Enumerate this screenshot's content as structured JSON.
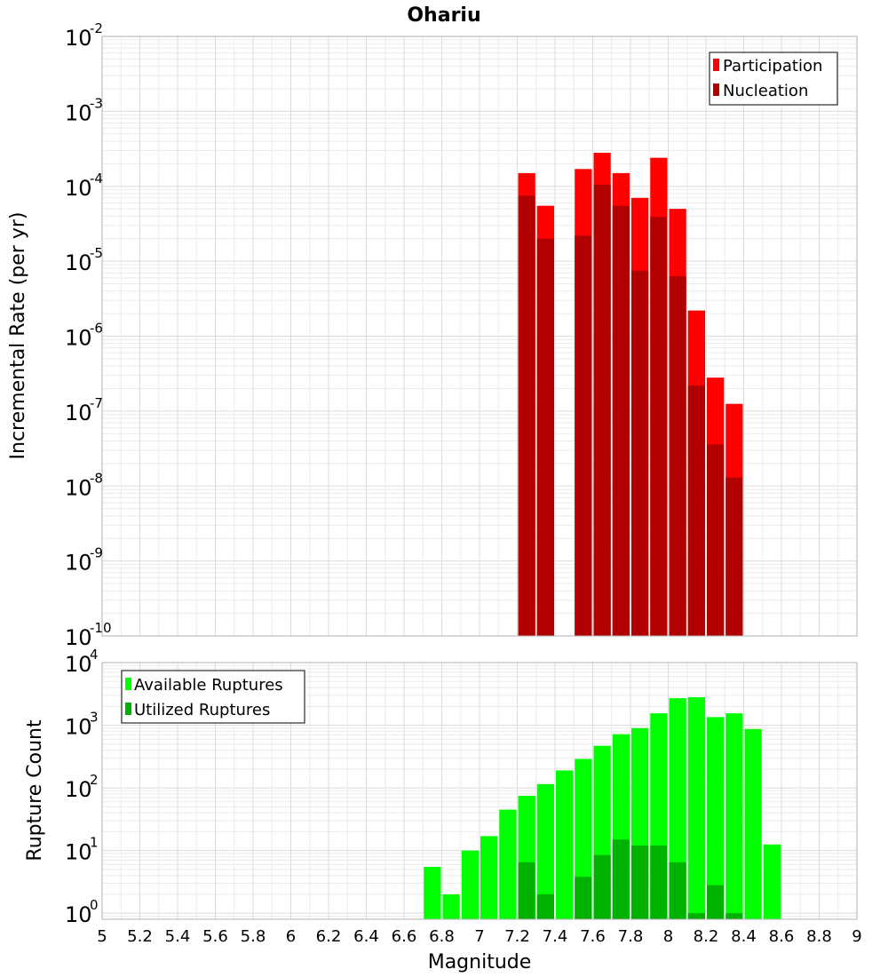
{
  "title": "Ohariu",
  "x_axis": {
    "label": "Magnitude",
    "range": [
      5,
      9
    ],
    "tick_labels": [
      "5",
      "5.2",
      "5.4",
      "5.6",
      "5.8",
      "6",
      "6.2",
      "6.4",
      "6.6",
      "6.8",
      "7",
      "7.2",
      "7.4",
      "7.6",
      "7.8",
      "8",
      "8.2",
      "8.4",
      "8.6",
      "8.8",
      "9"
    ]
  },
  "colors": {
    "participation": "#ff0000",
    "nucleation": "#b20000",
    "available": "#00ff00",
    "utilized": "#00b200",
    "grid": "#ebebeb",
    "frame": "#b0b0b0"
  },
  "chart_data": [
    {
      "type": "bar",
      "title": "Ohariu",
      "xlabel": "",
      "ylabel": "Incremental Rate (per yr)",
      "yscale": "log",
      "ylim": [
        1e-10,
        0.01
      ],
      "y_tick_exponents": [
        -10,
        -9,
        -8,
        -7,
        -6,
        -5,
        -4,
        -3,
        -2
      ],
      "grid": true,
      "legend_position": "top-right",
      "bin_width": 0.1,
      "x": [
        7.25,
        7.35,
        7.55,
        7.65,
        7.75,
        7.85,
        7.95,
        8.05,
        8.15,
        8.25,
        8.35
      ],
      "series": [
        {
          "name": "Participation",
          "color_key": "participation",
          "values": [
            0.00015,
            5.5e-05,
            0.00017,
            0.00028,
            0.00015,
            7e-05,
            0.00024,
            5e-05,
            2.2e-06,
            2.8e-07,
            1.25e-07
          ]
        },
        {
          "name": "Nucleation",
          "color_key": "nucleation",
          "values": [
            7.5e-05,
            2e-05,
            2.2e-05,
            0.000105,
            5.5e-05,
            7.5e-06,
            3.9e-05,
            6.3e-06,
            2.2e-07,
            3.6e-08,
            1.3e-08
          ]
        }
      ]
    },
    {
      "type": "bar",
      "xlabel": "Magnitude",
      "ylabel": "Rupture Count",
      "yscale": "log",
      "ylim": [
        0.8,
        10000.0
      ],
      "y_tick_exponents": [
        0,
        1,
        2,
        3,
        4
      ],
      "grid": true,
      "legend_position": "top-left",
      "bin_width": 0.1,
      "series": [
        {
          "name": "Available Ruptures",
          "color_key": "available",
          "x": [
            6.75,
            6.85,
            6.95,
            7.05,
            7.15,
            7.25,
            7.35,
            7.45,
            7.55,
            7.65,
            7.75,
            7.85,
            7.95,
            8.05,
            8.15,
            8.25,
            8.35,
            8.45,
            8.55
          ],
          "values": [
            5.5,
            2,
            10,
            17,
            45,
            75,
            115,
            190,
            290,
            470,
            720,
            900,
            1550,
            2700,
            2800,
            1350,
            1550,
            870,
            12.5
          ]
        },
        {
          "name": "Utilized Ruptures",
          "color_key": "utilized",
          "x": [
            7.25,
            7.35,
            7.55,
            7.65,
            7.75,
            7.85,
            7.95,
            8.05,
            8.15,
            8.25,
            8.35
          ],
          "values": [
            6.5,
            2,
            3.8,
            8.5,
            15,
            12,
            12,
            6.5,
            1,
            2.8,
            1
          ]
        }
      ]
    }
  ]
}
